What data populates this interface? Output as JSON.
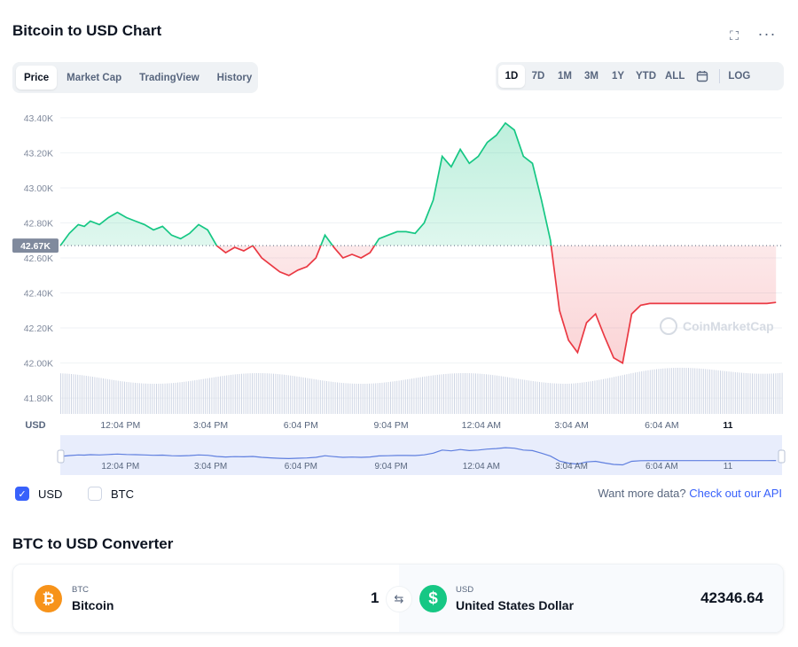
{
  "header": {
    "title": "Bitcoin to USD Chart"
  },
  "icons": {
    "expand": "expand-icon",
    "more": "more-icon",
    "calendar": "calendar-icon"
  },
  "tabs": [
    {
      "label": "Price",
      "active": true
    },
    {
      "label": "Market Cap",
      "active": false
    },
    {
      "label": "TradingView",
      "active": false
    },
    {
      "label": "History",
      "active": false
    }
  ],
  "ranges": {
    "items": [
      "1D",
      "7D",
      "1M",
      "3M",
      "1Y",
      "YTD",
      "ALL"
    ],
    "active": "1D",
    "log_label": "LOG"
  },
  "watermark": "CoinMarketCap",
  "chart_data": {
    "type": "line",
    "series": [
      {
        "name": "USD",
        "x": [
          0,
          0.3,
          0.6,
          0.8,
          1,
          1.3,
          1.6,
          1.9,
          2.2,
          2.5,
          2.8,
          3.1,
          3.4,
          3.7,
          4,
          4.3,
          4.6,
          4.9,
          5.2,
          5.5,
          5.8,
          6.1,
          6.4,
          6.7,
          7,
          7.3,
          7.6,
          7.9,
          8.2,
          8.5,
          8.8,
          9.1,
          9.4,
          9.7,
          10,
          10.3,
          10.6,
          10.9,
          11.2,
          11.5,
          11.8,
          12.1,
          12.4,
          12.7,
          13,
          13.3,
          13.6,
          13.9,
          14.2,
          14.5,
          14.8,
          15.1,
          15.4,
          15.7,
          16,
          16.3,
          16.6,
          16.9,
          17.2,
          17.5,
          17.8,
          18.1,
          18.4,
          18.7,
          19,
          19.3,
          19.6,
          19.9,
          20.2,
          20.5,
          20.8,
          21.1,
          21.4,
          21.7,
          22,
          22.3,
          22.6,
          22.9,
          23.2,
          23.5,
          23.8
        ],
        "values": [
          42.67,
          42.74,
          42.79,
          42.78,
          42.81,
          42.79,
          42.83,
          42.86,
          42.83,
          42.81,
          42.79,
          42.76,
          42.78,
          42.73,
          42.71,
          42.74,
          42.79,
          42.76,
          42.67,
          42.63,
          42.66,
          42.64,
          42.67,
          42.6,
          42.56,
          42.52,
          42.5,
          42.53,
          42.55,
          42.6,
          42.73,
          42.66,
          42.6,
          42.62,
          42.6,
          42.63,
          42.71,
          42.73,
          42.75,
          42.75,
          42.74,
          42.8,
          42.93,
          43.18,
          43.12,
          43.22,
          43.14,
          43.18,
          43.26,
          43.3,
          43.37,
          43.33,
          43.18,
          43.14,
          42.93,
          42.7,
          42.3,
          42.13,
          42.06,
          42.23,
          42.28,
          42.15,
          42.03,
          42.0,
          42.28,
          42.33,
          42.34,
          42.34,
          42.34,
          42.34,
          42.34,
          42.34,
          42.34,
          42.34,
          42.34,
          42.34,
          42.34,
          42.34,
          42.34,
          42.34,
          42.346
        ],
        "open": 42.67
      }
    ],
    "y_unit": "K",
    "ylim": [
      41.75,
      43.45
    ],
    "yticks": [
      "43.40K",
      "43.20K",
      "43.00K",
      "42.80K",
      "42.60K",
      "42.40K",
      "42.20K",
      "42.00K",
      "41.80K"
    ],
    "ytick_values": [
      43.4,
      43.2,
      43.0,
      42.8,
      42.6,
      42.4,
      42.2,
      42.0,
      41.8
    ],
    "current_label": "42.67K",
    "current_value": 42.67,
    "xticks": [
      "12:04 PM",
      "3:04 PM",
      "6:04 PM",
      "9:04 PM",
      "12:04 AM",
      "3:04 AM",
      "6:04 AM",
      "11"
    ],
    "xtick_values": [
      2.0,
      5.0,
      8.0,
      11.0,
      14.0,
      17.0,
      20.0,
      22.2
    ],
    "x_axis_label": "USD",
    "xlim": [
      0,
      24
    ],
    "colors": {
      "up": "#16c784",
      "down": "#ea3943",
      "grid": "#eff2f5",
      "volume": "#cfd6e4"
    },
    "grid": true
  },
  "checkboxes": [
    {
      "label": "USD",
      "checked": true
    },
    {
      "label": "BTC",
      "checked": false
    }
  ],
  "more_data": {
    "text": "Want more data?",
    "link": "Check out our API"
  },
  "converter": {
    "title": "BTC to USD Converter",
    "from": {
      "symbol": "BTC",
      "name": "Bitcoin",
      "amount": "1",
      "icon": "bitcoin-icon"
    },
    "to": {
      "symbol": "USD",
      "name": "United States Dollar",
      "amount": "42346.64",
      "icon": "dollar-icon"
    },
    "swap_icon": "swap-icon"
  }
}
